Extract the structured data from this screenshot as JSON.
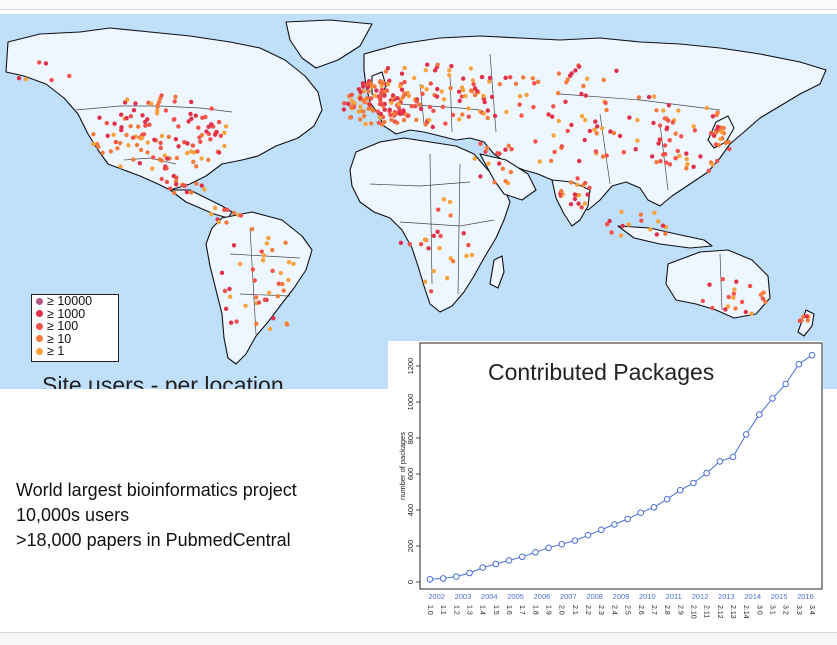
{
  "map": {
    "caption": "Site users - per location",
    "legend": [
      {
        "label": "≥ 10000",
        "color": "#b0578a"
      },
      {
        "label": "≥ 1000",
        "color": "#e0304a"
      },
      {
        "label": "≥ 100",
        "color": "#f2524a"
      },
      {
        "label": "≥ 10",
        "color": "#f37c3c"
      },
      {
        "label": "≥ 1",
        "color": "#f7a23a"
      }
    ],
    "ocean_color": "#bfdffb",
    "land_color": "#eef6ff"
  },
  "project": {
    "headline": "World largest bioinformatics project",
    "line2": "10,000s users",
    "line3": ">18,000 papers in PubmedCentral"
  },
  "chart_data": {
    "type": "line",
    "title": "Contributed Packages",
    "ylabel": "number of packages",
    "ylim": [
      0,
      1300
    ],
    "yticks": [
      0,
      200,
      400,
      600,
      800,
      1000,
      1200
    ],
    "year_labels": [
      "2002",
      "2003",
      "2004",
      "2005",
      "2006",
      "2007",
      "2008",
      "2009",
      "2010",
      "2011",
      "2012",
      "2013",
      "2014",
      "2015",
      "2016"
    ],
    "release_labels": [
      "1.0",
      "1.1",
      "1.2",
      "1.3",
      "1.4",
      "1.5",
      "1.6",
      "1.7",
      "1.8",
      "1.9",
      "2.0",
      "2.1",
      "2.2",
      "2.3",
      "2.4",
      "2.5",
      "2.6",
      "2.7",
      "2.8",
      "2.9",
      "2.10",
      "2.11",
      "2.12",
      "2.13",
      "2.14",
      "3.0",
      "3.1",
      "3.2",
      "3.3",
      "3.4"
    ],
    "values": [
      15,
      20,
      30,
      50,
      80,
      100,
      120,
      140,
      165,
      190,
      210,
      230,
      260,
      290,
      320,
      350,
      385,
      415,
      460,
      510,
      550,
      605,
      670,
      695,
      820,
      930,
      1020,
      1100,
      1210,
      1260
    ],
    "line_color": "#4a6fd6",
    "grid": false
  }
}
